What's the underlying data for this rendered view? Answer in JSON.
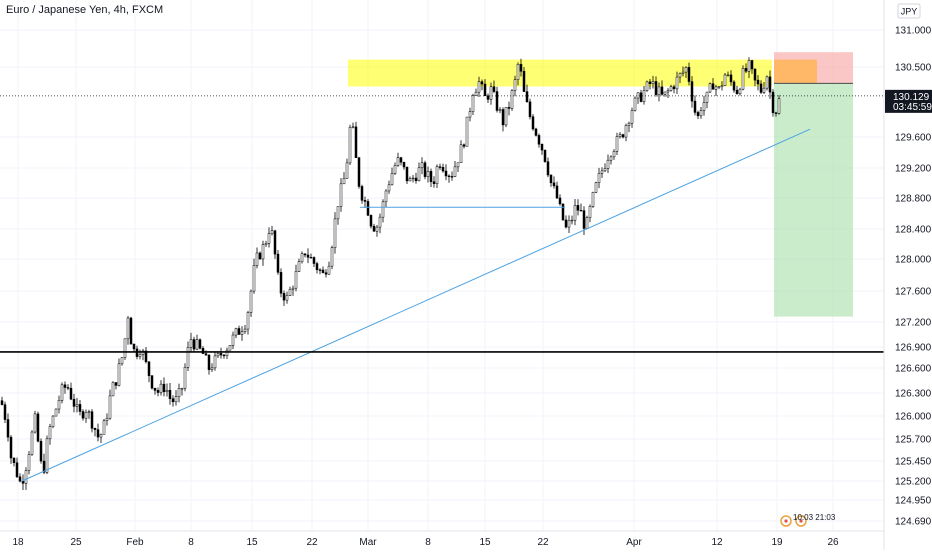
{
  "chart_data": {
    "type": "candlestick",
    "title": "Euro / Japanese Yen, 4h, FXCM",
    "currency_badge": "JPY",
    "y_ticks": [
      131.0,
      130.5,
      129.6,
      129.2,
      128.8,
      128.4,
      128.0,
      127.6,
      127.2,
      126.9,
      126.6,
      126.3,
      126.0,
      125.7,
      125.45,
      125.2,
      124.95,
      124.69
    ],
    "y_tick_labels": [
      "131.000",
      "130.500",
      "129.600",
      "129.200",
      "128.800",
      "128.400",
      "128.000",
      "127.600",
      "127.200",
      "126.900",
      "126.600",
      "126.300",
      "126.000",
      "125.700",
      "125.450",
      "125.200",
      "124.950",
      "124.690"
    ],
    "x_tick_labels": [
      "18",
      "25",
      "Feb",
      "8",
      "15",
      "22",
      "Mar",
      "8",
      "15",
      "22",
      "Apr",
      "12",
      "19",
      "26"
    ],
    "current_price": {
      "label": "130.129",
      "countdown": "03:45:59",
      "value": 130.129,
      "color": "#131722"
    },
    "close_path": [
      [
        0,
        126.2
      ],
      [
        6,
        125.9
      ],
      [
        10,
        125.5
      ],
      [
        16,
        125.3
      ],
      [
        20,
        125.15
      ],
      [
        25,
        125.4
      ],
      [
        30,
        125.7
      ],
      [
        35,
        126.0
      ],
      [
        38,
        125.5
      ],
      [
        42,
        125.3
      ],
      [
        48,
        125.8
      ],
      [
        55,
        126.1
      ],
      [
        60,
        126.3
      ],
      [
        66,
        126.4
      ],
      [
        72,
        126.2
      ],
      [
        78,
        126.0
      ],
      [
        85,
        126.1
      ],
      [
        92,
        125.9
      ],
      [
        98,
        125.7
      ],
      [
        104,
        125.9
      ],
      [
        110,
        126.3
      ],
      [
        116,
        126.5
      ],
      [
        122,
        126.8
      ],
      [
        127,
        127.3
      ],
      [
        130,
        127.0
      ],
      [
        134,
        126.8
      ],
      [
        140,
        126.9
      ],
      [
        146,
        126.6
      ],
      [
        152,
        126.4
      ],
      [
        158,
        126.3
      ],
      [
        164,
        126.4
      ],
      [
        170,
        126.2
      ],
      [
        176,
        126.2
      ],
      [
        182,
        126.4
      ],
      [
        186,
        126.8
      ],
      [
        190,
        127.0
      ],
      [
        196,
        126.9
      ],
      [
        202,
        126.8
      ],
      [
        208,
        126.6
      ],
      [
        214,
        126.7
      ],
      [
        220,
        126.8
      ],
      [
        226,
        126.9
      ],
      [
        232,
        127.0
      ],
      [
        238,
        127.1
      ],
      [
        244,
        127.2
      ],
      [
        248,
        127.4
      ],
      [
        252,
        127.8
      ],
      [
        256,
        128.0
      ],
      [
        260,
        128.1
      ],
      [
        264,
        128.2
      ],
      [
        268,
        128.4
      ],
      [
        272,
        128.3
      ],
      [
        276,
        127.8
      ],
      [
        280,
        127.6
      ],
      [
        286,
        127.5
      ],
      [
        292,
        127.7
      ],
      [
        298,
        127.9
      ],
      [
        304,
        128.1
      ],
      [
        310,
        128.0
      ],
      [
        316,
        127.9
      ],
      [
        322,
        127.8
      ],
      [
        328,
        128.0
      ],
      [
        332,
        128.3
      ],
      [
        336,
        128.7
      ],
      [
        340,
        128.9
      ],
      [
        344,
        129.1
      ],
      [
        348,
        129.5
      ],
      [
        350,
        129.9
      ],
      [
        354,
        129.4
      ],
      [
        358,
        129.0
      ],
      [
        362,
        128.8
      ],
      [
        366,
        128.7
      ],
      [
        370,
        128.5
      ],
      [
        375,
        128.4
      ],
      [
        380,
        128.6
      ],
      [
        385,
        128.9
      ],
      [
        390,
        129.1
      ],
      [
        396,
        129.3
      ],
      [
        402,
        129.2
      ],
      [
        408,
        129.0
      ],
      [
        414,
        129.1
      ],
      [
        420,
        129.2
      ],
      [
        426,
        129.1
      ],
      [
        432,
        129.0
      ],
      [
        438,
        129.3
      ],
      [
        444,
        129.2
      ],
      [
        450,
        129.1
      ],
      [
        456,
        129.3
      ],
      [
        462,
        129.5
      ],
      [
        468,
        129.9
      ],
      [
        472,
        130.2
      ],
      [
        478,
        130.3
      ],
      [
        484,
        130.1
      ],
      [
        490,
        130.2
      ],
      [
        496,
        130.0
      ],
      [
        502,
        129.8
      ],
      [
        508,
        130.0
      ],
      [
        514,
        130.3
      ],
      [
        518,
        130.6
      ],
      [
        522,
        130.2
      ],
      [
        528,
        129.9
      ],
      [
        534,
        129.7
      ],
      [
        540,
        129.5
      ],
      [
        545,
        129.3
      ],
      [
        550,
        129.0
      ],
      [
        556,
        128.8
      ],
      [
        560,
        128.6
      ],
      [
        565,
        128.4
      ],
      [
        570,
        128.5
      ],
      [
        575,
        128.7
      ],
      [
        580,
        128.6
      ],
      [
        585,
        128.4
      ],
      [
        590,
        128.7
      ],
      [
        596,
        129.0
      ],
      [
        602,
        129.2
      ],
      [
        608,
        129.4
      ],
      [
        614,
        129.5
      ],
      [
        620,
        129.6
      ],
      [
        626,
        129.8
      ],
      [
        632,
        130.0
      ],
      [
        638,
        130.1
      ],
      [
        644,
        130.2
      ],
      [
        650,
        130.3
      ],
      [
        656,
        130.2
      ],
      [
        662,
        130.1
      ],
      [
        668,
        130.2
      ],
      [
        674,
        130.3
      ],
      [
        680,
        130.4
      ],
      [
        686,
        130.5
      ],
      [
        690,
        130.2
      ],
      [
        696,
        129.8
      ],
      [
        700,
        130.0
      ],
      [
        706,
        130.1
      ],
      [
        712,
        130.3
      ],
      [
        718,
        130.2
      ],
      [
        724,
        130.4
      ],
      [
        730,
        130.3
      ],
      [
        736,
        130.2
      ],
      [
        742,
        130.4
      ],
      [
        748,
        130.5
      ],
      [
        754,
        130.3
      ],
      [
        760,
        130.2
      ],
      [
        766,
        130.4
      ],
      [
        770,
        130.1
      ],
      [
        774,
        129.9
      ],
      [
        776,
        130.0
      ],
      [
        780,
        130.129
      ]
    ],
    "zones": [
      {
        "name": "resistance-zone",
        "x0": 348,
        "x1": 772,
        "y_top": 130.6,
        "y_bottom": 130.25,
        "color": "#ffff00",
        "opacity": 0.55
      },
      {
        "name": "risk-zone",
        "x0": 774,
        "x1": 853,
        "y_top": 130.7,
        "y_bottom": 130.29,
        "color": "#f7a8a8",
        "opacity": 0.65
      },
      {
        "name": "target-zone",
        "x0": 774,
        "x1": 853,
        "y_top": 130.29,
        "y_bottom": 127.27,
        "color": "#a9dfa9",
        "opacity": 0.6
      },
      {
        "name": "entry-zone",
        "x0": 774,
        "x1": 817,
        "y_top": 130.6,
        "y_bottom": 130.29,
        "color": "#ffb347",
        "opacity": 0.75
      }
    ],
    "lines": [
      {
        "name": "trendline",
        "x0": 22,
        "y0": 125.2,
        "x1": 810,
        "y1": 129.7,
        "color": "#4ca3e3",
        "width": 1
      },
      {
        "name": "neckline",
        "x0": 360,
        "y0": 128.68,
        "x1": 565,
        "y1": 128.68,
        "color": "#4ca3e3",
        "width": 1
      },
      {
        "name": "support-line",
        "x0": 0,
        "y0": 126.83,
        "x1": 884,
        "y1": 126.83,
        "color": "#000000",
        "width": 1.6
      },
      {
        "name": "entry-line",
        "x0": 774,
        "y0": 130.29,
        "x1": 853,
        "y1": 130.29,
        "color": "#4a4a4a",
        "width": 1
      }
    ]
  },
  "footer_badges": {
    "label": "10:03 21:03"
  }
}
